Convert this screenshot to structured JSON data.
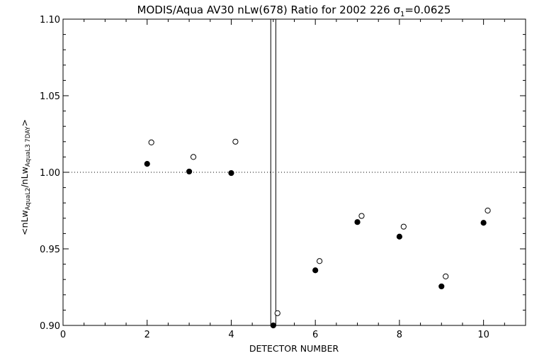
{
  "chart_data": {
    "type": "scatter",
    "title": {
      "prefix": "MODIS/Aqua AV30 nLw(678) Ratio for 2002 226 ",
      "sigma_symbol": "σ",
      "sigma_sub": "1",
      "suffix": "=0.0625"
    },
    "xlabel": "DETECTOR NUMBER",
    "ylabel": {
      "part1": "<nLw",
      "sub1": "AquaL2",
      "part2": "/nLw",
      "sub2": "AquaL3 7DAY",
      "part3": ">"
    },
    "xlim": [
      0,
      11
    ],
    "ylim": [
      0.9,
      1.1
    ],
    "x_ticks": [
      0,
      2,
      4,
      6,
      8,
      10
    ],
    "x_tick_labels": [
      "0",
      "2",
      "4",
      "6",
      "8",
      "10"
    ],
    "x_minor_step": 0.5,
    "y_ticks": [
      0.9,
      0.95,
      1.0,
      1.05,
      1.1
    ],
    "y_tick_labels": [
      "0.90",
      "0.95",
      "1.00",
      "1.05",
      "1.10"
    ],
    "y_minor_step": 0.01,
    "reference_line_y": 1.0,
    "vertical_lines_x": [
      4.94,
      5.06
    ],
    "series": [
      {
        "marker": "filled-circle",
        "x": [
          2,
          3,
          4,
          5,
          6,
          7,
          8,
          9,
          10
        ],
        "y": [
          1.0055,
          1.0005,
          0.9995,
          0.9,
          0.936,
          0.9675,
          0.958,
          0.9255,
          0.967
        ]
      },
      {
        "marker": "open-circle",
        "x": [
          2.1,
          3.1,
          4.1,
          5.1,
          6.1,
          7.1,
          8.1,
          9.1,
          10.1
        ],
        "y": [
          1.0195,
          1.01,
          1.02,
          0.908,
          0.942,
          0.9715,
          0.9645,
          0.932,
          0.975
        ]
      }
    ]
  }
}
